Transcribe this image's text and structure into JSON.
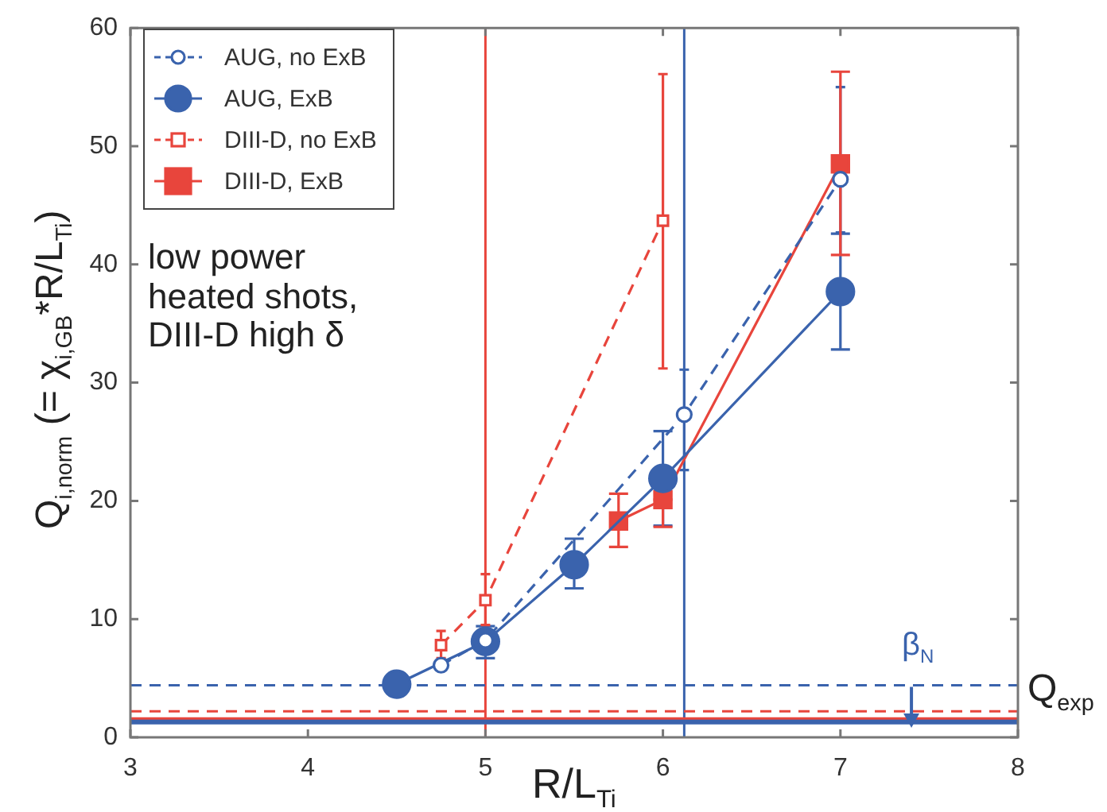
{
  "chart_data": {
    "type": "line",
    "xlabel": "R/L$_{Ti}$",
    "ylabel": "Q$_{i,norm}$  (= χ$_{i,GB}$*R/L$_{Ti}$)",
    "xlim": [
      3,
      8
    ],
    "xticks": [
      3,
      4,
      5,
      6,
      7,
      8
    ],
    "ylim": [
      0,
      60
    ],
    "yticks": [
      0,
      10,
      20,
      30,
      40,
      50,
      60
    ],
    "grid": false,
    "legend": "top left",
    "series": [
      {
        "name": "AUG, no ExB",
        "color": "#3a63ad",
        "marker": "circle",
        "line_style": "dashed",
        "x": [
          4.75,
          5,
          6.12,
          7
        ],
        "values": [
          6.1,
          8.2,
          27.3,
          47.2
        ],
        "errors": [
          null,
          null,
          [
            22.6,
            31.1
          ],
          [
            42.7,
            55.0
          ]
        ]
      },
      {
        "name": "AUG, ExB",
        "color": "#3a63ad",
        "marker": "circle",
        "line_style": "solid",
        "x": [
          4.5,
          5,
          5.5,
          6,
          7
        ],
        "values": [
          4.5,
          8.1,
          14.6,
          21.9,
          37.7
        ],
        "errors": [
          null,
          [
            6.7,
            9.4
          ],
          [
            12.6,
            16.8
          ],
          [
            17.9,
            25.9
          ],
          [
            32.8,
            42.6
          ]
        ]
      },
      {
        "name": "DIII-D, no ExB",
        "color": "#e8453c",
        "marker": "square",
        "line_style": "dashed",
        "x": [
          4.75,
          5,
          6
        ],
        "values": [
          7.8,
          11.6,
          43.7
        ],
        "errors": [
          [
            6.7,
            9.0
          ],
          [
            9.5,
            13.8
          ],
          [
            31.2,
            56.1
          ]
        ]
      },
      {
        "name": "DIII-D, ExB",
        "color": "#e8453c",
        "marker": "square",
        "line_style": "solid",
        "x": [
          5.75,
          6,
          7
        ],
        "values": [
          18.3,
          20.1,
          48.5
        ],
        "errors": [
          [
            16.1,
            20.6
          ],
          [
            17.8,
            20.1
          ],
          [
            40.8,
            56.3
          ]
        ]
      }
    ],
    "ref_lines": [
      {
        "axis": "x",
        "value": 5,
        "color": "#e8453c",
        "line_style": "solid"
      },
      {
        "axis": "x",
        "value": 6.12,
        "color": "#3a63ad",
        "line_style": "solid"
      },
      {
        "axis": "y",
        "value": 4.4,
        "color": "#3a63ad",
        "line_style": "dashed"
      },
      {
        "axis": "y",
        "value": 2.2,
        "color": "#e8453c",
        "line_style": "dashed"
      },
      {
        "axis": "y",
        "value": 1.5,
        "color": "#e8453c",
        "line_style": "solid",
        "label": "Q$_{exp}$"
      },
      {
        "axis": "y",
        "value": 1.3,
        "color": "#3a63ad",
        "line_style": "solid"
      }
    ],
    "annotations": [
      "low power heated shots, DIII-D high δ",
      {
        "text": "β$_{N}$",
        "x": 7.4,
        "y": 4.4
      }
    ]
  }
}
